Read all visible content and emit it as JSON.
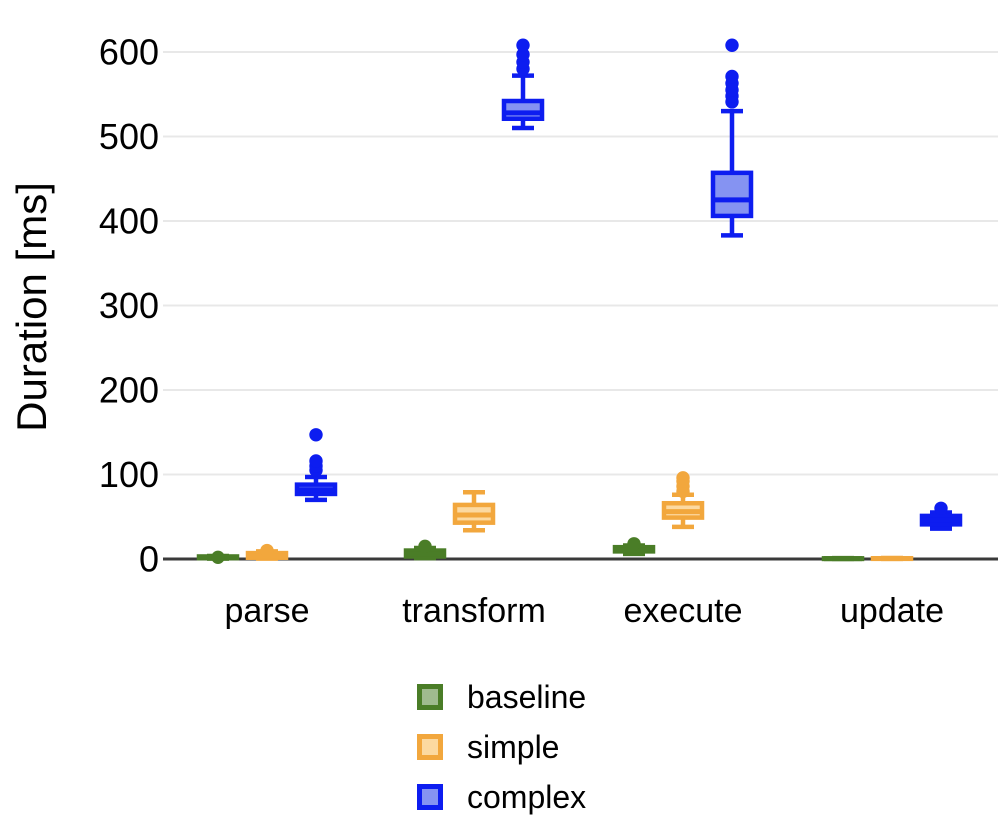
{
  "chart_data": {
    "type": "boxplot",
    "title": "",
    "xlabel": "",
    "ylabel": "Duration [ms]",
    "ylim": [
      0,
      620
    ],
    "yticks": [
      0,
      100,
      200,
      300,
      400,
      500,
      600
    ],
    "grid": "horizontal",
    "legend_position": "bottom-center",
    "categories": [
      "parse",
      "transform",
      "execute",
      "update"
    ],
    "colors": {
      "grid": "#e8e8e8",
      "axis_line": "#3a3a3a",
      "text": "#000000",
      "background": "#ffffff"
    },
    "series": [
      {
        "name": "baseline",
        "stroke": "#4a7d27",
        "fill": "#9fbb8e",
        "boxes": [
          {
            "category": "parse",
            "low": 0.5,
            "q1": 1,
            "median": 2,
            "q3": 3,
            "high": 3.5,
            "outliers": [
              2
            ]
          },
          {
            "category": "transform",
            "low": 1,
            "q1": 3,
            "median": 6,
            "q3": 10,
            "high": 13,
            "outliers": [
              15
            ]
          },
          {
            "category": "execute",
            "low": 6,
            "q1": 9,
            "median": 11,
            "q3": 14,
            "high": 16,
            "outliers": [
              18
            ]
          },
          {
            "category": "update",
            "low": 0.2,
            "q1": 0.3,
            "median": 0.5,
            "q3": 0.8,
            "high": 1,
            "outliers": []
          }
        ]
      },
      {
        "name": "simple",
        "stroke": "#f2a73d",
        "fill": "#fcd9a0",
        "boxes": [
          {
            "category": "parse",
            "low": 0.5,
            "q1": 1.5,
            "median": 4,
            "q3": 7,
            "high": 9,
            "outliers": [
              10
            ]
          },
          {
            "category": "transform",
            "low": 34,
            "q1": 43,
            "median": 52,
            "q3": 64,
            "high": 79,
            "outliers": []
          },
          {
            "category": "execute",
            "low": 38,
            "q1": 49,
            "median": 56,
            "q3": 66,
            "high": 76,
            "outliers": [
              80,
              86,
              92,
              96
            ]
          },
          {
            "category": "update",
            "low": 0.2,
            "q1": 0.4,
            "median": 0.6,
            "q3": 0.9,
            "high": 1.2,
            "outliers": []
          }
        ]
      },
      {
        "name": "complex",
        "stroke": "#0d1df0",
        "fill": "#8593f2",
        "boxes": [
          {
            "category": "parse",
            "low": 70,
            "q1": 77,
            "median": 82,
            "q3": 88,
            "high": 97,
            "outliers": [
              105,
              110,
              116,
              147
            ]
          },
          {
            "category": "transform",
            "low": 510,
            "q1": 521,
            "median": 528,
            "q3": 542,
            "high": 572,
            "outliers": [
              580,
              588,
              597,
              608
            ]
          },
          {
            "category": "execute",
            "low": 383,
            "q1": 406,
            "median": 425,
            "q3": 457,
            "high": 530,
            "outliers": [
              541,
              548,
              555,
              563,
              571,
              608
            ]
          },
          {
            "category": "update",
            "low": 36,
            "q1": 41,
            "median": 46,
            "q3": 51,
            "high": 55,
            "outliers": [
              60
            ]
          }
        ]
      }
    ]
  }
}
